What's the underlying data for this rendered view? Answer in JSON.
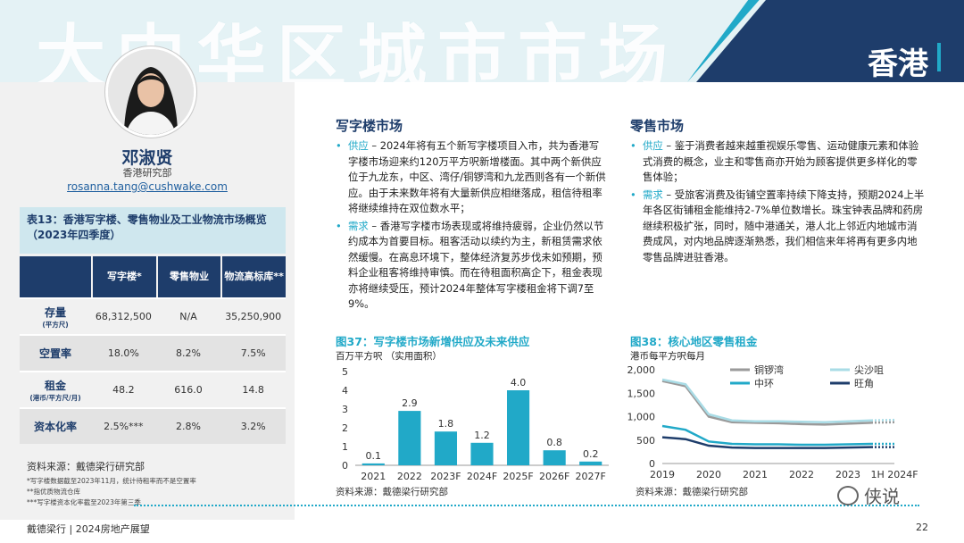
{
  "banner": {
    "title": "大中华区城市市场",
    "region": "香港"
  },
  "profile": {
    "name": "邓淑贤",
    "role": "香港研究部",
    "email": "rosanna.tang@cushwake.com"
  },
  "table": {
    "title": "表13：香港写字楼、零售物业及工业物流市场概览（2023年四季度）",
    "headers": [
      "写字楼*",
      "零售物业",
      "物流高标库**"
    ],
    "rows": [
      {
        "label": "存量",
        "sublabel": "(平方尺)",
        "values": [
          "68,312,500",
          "N/A",
          "35,250,900"
        ]
      },
      {
        "label": "空置率",
        "sublabel": "",
        "values": [
          "18.0%",
          "8.2%",
          "7.5%"
        ]
      },
      {
        "label": "租金",
        "sublabel": "(港币/平方尺/月)",
        "values": [
          "48.2",
          "616.0",
          "14.8"
        ]
      },
      {
        "label": "资本化率",
        "sublabel": "",
        "values": [
          "2.5%***",
          "2.8%",
          "3.2%"
        ]
      }
    ],
    "source": "资料来源：戴德梁行研究部",
    "footnotes": [
      "*写字楼数据截至2023年11月，统计待租率而不是空置率",
      "**指优质物流仓库",
      "***写字楼资本化率截至2023年第三季"
    ]
  },
  "office": {
    "title": "写字楼市场",
    "bullets": [
      {
        "key": "供应",
        "text": " – 2024年将有五个新写字楼项目入市，共为香港写字楼市场迎来约120万平方呎新增楼面。其中两个新供应位于九龙东，中区、湾仔/铜锣湾和九龙西则各有一个新供应。由于未来数年将有大量新供应相继落成，租信待租率将继续维持在双位数水平；"
      },
      {
        "key": "需求",
        "text": " – 香港写字楼市场表现或将维持疲弱，企业仍然以节约成本为首要目标。租客活动以续约为主，新租赁需求依然缓慢。在高息环境下，整体经济复苏步伐未如预期，预料企业租客将维持审慎。而在待租面积高企下，租金表现亦将继续受压，预计2024年整体写字楼租金将下调7至9%。"
      }
    ]
  },
  "retail": {
    "title": "零售市场",
    "bullets": [
      {
        "key": "供应",
        "text": " – 鉴于消费者越来越重视娱乐零售、运动健康元素和体验式消费的概念，业主和零售商亦开始为顾客提供更多样化的零售体验；"
      },
      {
        "key": "需求",
        "text": " – 受旅客消费及街铺空置率持续下降支持，预期2024上半年各区街铺租金能维持2-7%单位数增长。珠宝钟表品牌和药房继续积极扩张，同时，随中港通关，港人北上邻近内地城市消费成风，对内地品牌逐渐熟悉，我们相信来年将再有更多内地零售品牌进驻香港。"
      }
    ]
  },
  "chart_data": [
    {
      "type": "bar",
      "title": "图37：写字楼市场新增供应及未来供应",
      "ylabel": "百万平方呎 （实用面积）",
      "categories": [
        "2021",
        "2022",
        "2023F",
        "2024F",
        "2025F",
        "2026F",
        "2027F"
      ],
      "values": [
        0.1,
        2.9,
        1.8,
        1.2,
        4.0,
        0.8,
        0.2
      ],
      "value_labels": [
        "0.1",
        "2.9",
        "1.8",
        "1.2",
        "4.0",
        "0.8",
        "0.2"
      ],
      "ylim": [
        0,
        5
      ],
      "yticks": [
        "0",
        "1",
        "2",
        "3",
        "4",
        "5"
      ],
      "grid": false,
      "color": "#21a9c8",
      "source": "资料来源：戴德梁行研究部"
    },
    {
      "type": "line",
      "title": "图38：核心地区零售租金",
      "ylabel": "港币每平方呎每月",
      "x": [
        2019,
        2019.5,
        2020,
        2020.5,
        2021,
        2021.5,
        2022,
        2022.5,
        2023,
        2023.5,
        2024
      ],
      "x_ticks": [
        "2019",
        "2020",
        "2021",
        "2022",
        "2023",
        "1H 2024F"
      ],
      "ylim": [
        0,
        2000
      ],
      "yticks": [
        "0",
        "500",
        "1,000",
        "1,500",
        "2,000"
      ],
      "legend": "top",
      "series": [
        {
          "name": "铜锣湾",
          "color": "#9a9a9a",
          "values": [
            1760,
            1650,
            1000,
            880,
            870,
            860,
            840,
            830,
            850,
            870,
            880
          ]
        },
        {
          "name": "尖沙咀",
          "color": "#a9dce6",
          "values": [
            1790,
            1690,
            1050,
            920,
            900,
            900,
            890,
            880,
            900,
            920,
            930
          ]
        },
        {
          "name": "中环",
          "color": "#21a9c8",
          "values": [
            800,
            720,
            470,
            420,
            410,
            410,
            400,
            400,
            410,
            420,
            420
          ]
        },
        {
          "name": "旺角",
          "color": "#1e3d6b",
          "values": [
            560,
            520,
            380,
            340,
            330,
            330,
            330,
            330,
            340,
            350,
            350
          ]
        }
      ],
      "forecast_after_index": 9,
      "source": "资料来源：戴德梁行研究部"
    }
  ],
  "footer": {
    "left": "戴德梁行 | 2024房地产展望",
    "page": "22",
    "watermark": "侠说"
  }
}
